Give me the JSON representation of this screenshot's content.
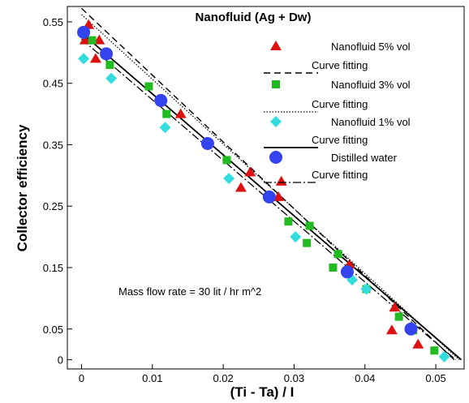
{
  "chart_data": {
    "type": "scatter",
    "title": "Nanofluid (Ag + Dw)",
    "xlabel": "(Ti - Ta) / I",
    "ylabel": "Collector efficiency",
    "annotation": "Mass flow rate = 30 lit / hr m^2",
    "xlim": [
      -0.002,
      0.054
    ],
    "ylim": [
      -0.015,
      0.575
    ],
    "x_ticks": [
      0,
      0.01,
      0.02,
      0.03,
      0.04,
      0.05
    ],
    "x_tick_labels": [
      "0",
      "0.01",
      "0.02",
      "0.03",
      "0.04",
      "0.05"
    ],
    "y_ticks": [
      0,
      0.05,
      0.15,
      0.25,
      0.35,
      0.45,
      0.55
    ],
    "y_tick_labels": [
      "0",
      "0.05",
      "0.15",
      "0.25",
      "0.35",
      "0.45",
      "0.55"
    ],
    "grid": false,
    "legend_position": "top-right",
    "series": [
      {
        "name": "Nanofluid 5% vol",
        "marker": "triangle",
        "color": "#dd1111",
        "x": [
          0.0005,
          0.001,
          0.002,
          0.0025,
          0.014,
          0.0225,
          0.0238,
          0.0278,
          0.0282,
          0.0378,
          0.0442,
          0.0438,
          0.0475
        ],
        "y": [
          0.52,
          0.545,
          0.49,
          0.52,
          0.4,
          0.28,
          0.305,
          0.265,
          0.29,
          0.155,
          0.085,
          0.048,
          0.025
        ]
      },
      {
        "name": "Curve fitting",
        "line": "dash",
        "color": "#000000",
        "x": [
          0.0,
          0.0526
        ],
        "y": [
          0.572,
          0.0
        ]
      },
      {
        "name": "Nanofluid 3% vol",
        "marker": "square",
        "color": "#22bb22",
        "x": [
          0.0015,
          0.004,
          0.0095,
          0.012,
          0.0205,
          0.0292,
          0.0322,
          0.0318,
          0.0355,
          0.0362,
          0.0402,
          0.0448,
          0.0468,
          0.0498
        ],
        "y": [
          0.52,
          0.48,
          0.445,
          0.4,
          0.325,
          0.225,
          0.218,
          0.19,
          0.15,
          0.172,
          0.115,
          0.07,
          0.048,
          0.015
        ]
      },
      {
        "name": "Curve fitting",
        "line": "dot",
        "color": "#000000",
        "x": [
          0.0,
          0.0533
        ],
        "y": [
          0.562,
          0.0
        ]
      },
      {
        "name": "Nanofluid 1% vol",
        "marker": "diamond",
        "color": "#33dddd",
        "x": [
          0.0003,
          0.0042,
          0.0118,
          0.0208,
          0.0302,
          0.0382,
          0.0402,
          0.0512
        ],
        "y": [
          0.49,
          0.458,
          0.378,
          0.295,
          0.2,
          0.13,
          0.115,
          0.005
        ]
      },
      {
        "name": "Curve fitting",
        "line": "solid",
        "color": "#000000",
        "x": [
          0.0,
          0.0536
        ],
        "y": [
          0.532,
          0.0
        ]
      },
      {
        "name": "Distilled water",
        "marker": "circle",
        "color": "#3344ee",
        "x": [
          0.0003,
          0.0035,
          0.0112,
          0.0178,
          0.0265,
          0.0375,
          0.0465
        ],
        "y": [
          0.533,
          0.498,
          0.422,
          0.352,
          0.265,
          0.143,
          0.05
        ]
      },
      {
        "name": "Curve fitting",
        "line": "dashdot",
        "color": "#000000",
        "x": [
          0.0,
          0.0528
        ],
        "y": [
          0.522,
          0.0
        ]
      }
    ]
  }
}
